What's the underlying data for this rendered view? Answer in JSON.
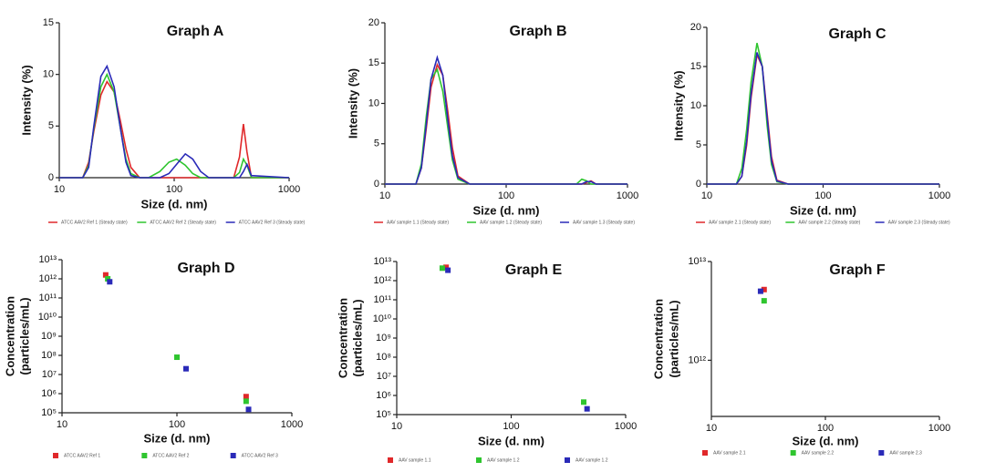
{
  "chart_data": [
    {
      "type": "line",
      "title": "Graph A",
      "x_label": "Size (d. nm)",
      "y_label": "Intensity (%)",
      "xscale": "log",
      "xlim": [
        10,
        1000
      ],
      "xticks": [
        10,
        100,
        1000
      ],
      "ylim": [
        0,
        15
      ],
      "yticks": [
        0,
        5,
        10,
        15
      ],
      "x": [
        10,
        16,
        18,
        20,
        23,
        26,
        30,
        34,
        38,
        42,
        50,
        60,
        75,
        90,
        105,
        125,
        145,
        170,
        200,
        330,
        370,
        400,
        430,
        470,
        1000
      ],
      "series": [
        {
          "name": "ATCC AAV2 Ref 1 (Steady state)",
          "color": "#e0282a",
          "values": [
            0,
            0,
            1.5,
            4.5,
            8,
            9.3,
            8.3,
            5.5,
            2.8,
            1,
            0,
            0,
            0,
            0,
            0,
            0,
            0,
            0,
            0,
            0,
            2,
            5.2,
            2.5,
            0,
            0
          ]
        },
        {
          "name": "ATCC AAV2 Ref 2 (Steady state)",
          "color": "#2fc52f",
          "values": [
            0,
            0,
            1.2,
            4.8,
            8.8,
            10,
            8.3,
            4.8,
            1.8,
            0.4,
            0,
            0,
            0.6,
            1.5,
            1.8,
            1.2,
            0.4,
            0,
            0,
            0,
            0.5,
            1.8,
            1.2,
            0,
            0
          ]
        },
        {
          "name": "ATCC AAV2 Ref 3 (Steady state)",
          "color": "#2a2ab8",
          "values": [
            0,
            0,
            1,
            5,
            9.8,
            10.8,
            8.8,
            4.8,
            1.5,
            0.2,
            0,
            0,
            0,
            0.4,
            1.3,
            2.3,
            1.8,
            0.6,
            0,
            0,
            0,
            0.6,
            1.3,
            0.2,
            0
          ]
        }
      ]
    },
    {
      "type": "line",
      "title": "Graph B",
      "x_label": "Size (d. nm)",
      "y_label": "Intensity (%)",
      "xscale": "log",
      "xlim": [
        10,
        1000
      ],
      "xticks": [
        10,
        100,
        1000
      ],
      "ylim": [
        0,
        20
      ],
      "yticks": [
        0,
        5,
        10,
        15,
        20
      ],
      "x": [
        10,
        18,
        20,
        22,
        24,
        27,
        30,
        33,
        36,
        40,
        50,
        100,
        300,
        380,
        420,
        460,
        500,
        550,
        1000
      ],
      "series": [
        {
          "name": "AAV sample 1.1 (Steady state)",
          "color": "#e0282a",
          "values": [
            0,
            0,
            2,
            7,
            12,
            14.8,
            13.5,
            9,
            4.5,
            1,
            0,
            0,
            0,
            0,
            0,
            0.2,
            0.4,
            0,
            0
          ]
        },
        {
          "name": "AAV sample 1.2 (Steady state)",
          "color": "#2fc52f",
          "values": [
            0,
            0,
            2.5,
            8.5,
            13,
            14.2,
            11.5,
            7,
            3,
            0.6,
            0,
            0,
            0,
            0,
            0.6,
            0.4,
            0,
            0,
            0
          ]
        },
        {
          "name": "AAV sample 1.3 (Steady state)",
          "color": "#2a2ab8",
          "values": [
            0,
            0,
            2,
            7.5,
            13,
            15.7,
            13.5,
            8,
            3.5,
            0.8,
            0,
            0,
            0,
            0,
            0,
            0.3,
            0.3,
            0,
            0
          ]
        }
      ]
    },
    {
      "type": "line",
      "title": "Graph C",
      "x_label": "Size (d. nm)",
      "y_label": "Intensity (%)",
      "xscale": "log",
      "xlim": [
        10,
        1000
      ],
      "xticks": [
        10,
        100,
        1000
      ],
      "ylim": [
        0,
        20
      ],
      "yticks": [
        0,
        5,
        10,
        15,
        20
      ],
      "x": [
        10,
        18,
        20,
        22,
        24,
        27,
        30,
        33,
        36,
        40,
        50,
        100,
        1000
      ],
      "series": [
        {
          "name": "AAV sample 2.1 (Steady state)",
          "color": "#e0282a",
          "values": [
            0,
            0,
            1,
            5,
            11,
            16.5,
            15,
            9,
            3.5,
            0.5,
            0,
            0,
            0
          ]
        },
        {
          "name": "AAV sample 2.2 (Steady state)",
          "color": "#2fc52f",
          "values": [
            0,
            0,
            2,
            7,
            13,
            18,
            15,
            7.5,
            2.5,
            0.3,
            0,
            0,
            0
          ]
        },
        {
          "name": "AAV sample 2.3 (Steady state)",
          "color": "#2a2ab8",
          "values": [
            0,
            0,
            1,
            5.5,
            11.5,
            16.8,
            15,
            8.5,
            3,
            0.4,
            0,
            0,
            0
          ]
        }
      ]
    },
    {
      "type": "scatter",
      "title": "Graph D",
      "x_label": "Size (d. nm)",
      "y_label": [
        "Concentration",
        "(particles/mL)"
      ],
      "xscale": "log",
      "yscale": "log",
      "xlim": [
        10,
        1000
      ],
      "xticks": [
        10,
        100,
        1000
      ],
      "ylim": [
        100000,
        10000000000000
      ],
      "yticks": [
        {
          "value": 10000000000000.0,
          "label": "10¹³"
        },
        {
          "value": 1000000000000.0,
          "label": "10¹²"
        },
        {
          "value": 100000000000.0,
          "label": "10¹¹"
        },
        {
          "value": 10000000000.0,
          "label": "10¹⁰"
        },
        {
          "value": 1000000000.0,
          "label": "10⁹"
        },
        {
          "value": 100000000.0,
          "label": "10⁸"
        },
        {
          "value": 10000000.0,
          "label": "10⁷"
        },
        {
          "value": 1000000.0,
          "label": "10⁶"
        },
        {
          "value": 100000.0,
          "label": "10⁵"
        }
      ],
      "series": [
        {
          "name": "ATCC AAV2 Ref 1",
          "color": "#e0282a",
          "x": [
            24,
            400
          ],
          "values": [
            1600000000000.0,
            700000.0
          ]
        },
        {
          "name": "ATCC AAV2 Ref 2",
          "color": "#2fc52f",
          "x": [
            25,
            100,
            400
          ],
          "values": [
            1000000000000.0,
            80000000.0,
            400000.0
          ]
        },
        {
          "name": "ATCC AAV2 Ref 3",
          "color": "#2a2ab8",
          "x": [
            26,
            120,
            420
          ],
          "values": [
            700000000000.0,
            20000000.0,
            150000.0
          ]
        }
      ]
    },
    {
      "type": "scatter",
      "title": "Graph E",
      "x_label": "Size (d. nm)",
      "y_label": [
        "Concentration",
        "(particles/mL)"
      ],
      "xscale": "log",
      "yscale": "log",
      "xlim": [
        10,
        1000
      ],
      "xticks": [
        10,
        100,
        1000
      ],
      "ylim": [
        100000,
        10000000000000
      ],
      "yticks": [
        {
          "value": 10000000000000.0,
          "label": "10¹³"
        },
        {
          "value": 1000000000000.0,
          "label": "10¹²"
        },
        {
          "value": 100000000000.0,
          "label": "10¹¹"
        },
        {
          "value": 10000000000.0,
          "label": "10¹⁰"
        },
        {
          "value": 1000000000.0,
          "label": "10⁹"
        },
        {
          "value": 100000000.0,
          "label": "10⁸"
        },
        {
          "value": 10000000.0,
          "label": "10⁷"
        },
        {
          "value": 1000000.0,
          "label": "10⁶"
        },
        {
          "value": 100000.0,
          "label": "10⁵"
        }
      ],
      "series": [
        {
          "name": "AAV sample 1.1",
          "color": "#e0282a",
          "x": [
            27
          ],
          "values": [
            5000000000000.0
          ]
        },
        {
          "name": "AAV sample 1.2",
          "color": "#2fc52f",
          "x": [
            25,
            430
          ],
          "values": [
            4500000000000.0,
            450000.0
          ]
        },
        {
          "name": "AAV sample 1.2",
          "color": "#2a2ab8",
          "x": [
            28,
            460
          ],
          "values": [
            3500000000000.0,
            200000.0
          ]
        }
      ]
    },
    {
      "type": "scatter",
      "title": "Graph F",
      "x_label": "Size (d. nm)",
      "y_label": [
        "Concentration",
        "(particles/mL)"
      ],
      "xscale": "log",
      "yscale": "log",
      "xlim": [
        10,
        1000
      ],
      "xticks": [
        10,
        100,
        1000
      ],
      "ylim": [
        270000000000,
        10000000000000
      ],
      "yticks": [
        {
          "value": 10000000000000.0,
          "label": "10¹³"
        },
        {
          "value": 1000000000000.0,
          "label": "10¹²"
        }
      ],
      "series": [
        {
          "name": "AAV sample 2.1",
          "color": "#e0282a",
          "x": [
            29
          ],
          "values": [
            5200000000000.0
          ]
        },
        {
          "name": "AAV sample 2.2",
          "color": "#2fc52f",
          "x": [
            29
          ],
          "values": [
            4000000000000.0
          ]
        },
        {
          "name": "AAV sample 2.3",
          "color": "#2a2ab8",
          "x": [
            27
          ],
          "values": [
            5000000000000.0
          ]
        }
      ]
    }
  ]
}
